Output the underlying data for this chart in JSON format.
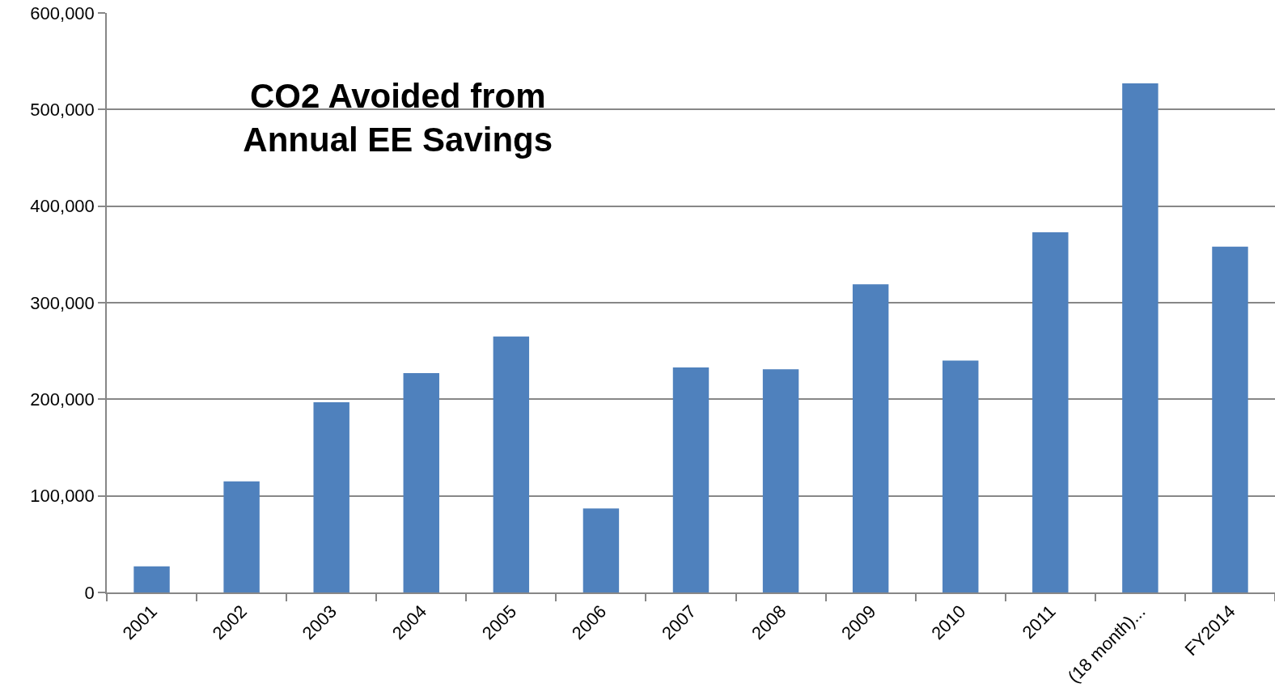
{
  "chart_data": {
    "type": "bar",
    "title": "CO2 Avoided from\nAnnual EE Savings",
    "categories": [
      "2001",
      "2002",
      "2003",
      "2004",
      "2005",
      "2006",
      "2007",
      "2008",
      "2009",
      "2010",
      "2011",
      "(18 month)...",
      "FY2014"
    ],
    "values": [
      27000,
      115000,
      197000,
      227000,
      265000,
      87000,
      233000,
      231000,
      319000,
      240000,
      373000,
      527000,
      358000
    ],
    "color": "#4f81bd",
    "ylim": [
      0,
      600000
    ],
    "yticks": [
      0,
      {
        "value": 100000,
        "label": "100,000"
      },
      {
        "value": 200000,
        "label": "200,000"
      },
      {
        "value": 300000,
        "label": "300,000"
      },
      {
        "value": 400000,
        "label": "400,000"
      },
      {
        "value": 500000,
        "label": "500,000"
      },
      {
        "value": 600000,
        "label": "600,000"
      }
    ],
    "grid": "y"
  }
}
